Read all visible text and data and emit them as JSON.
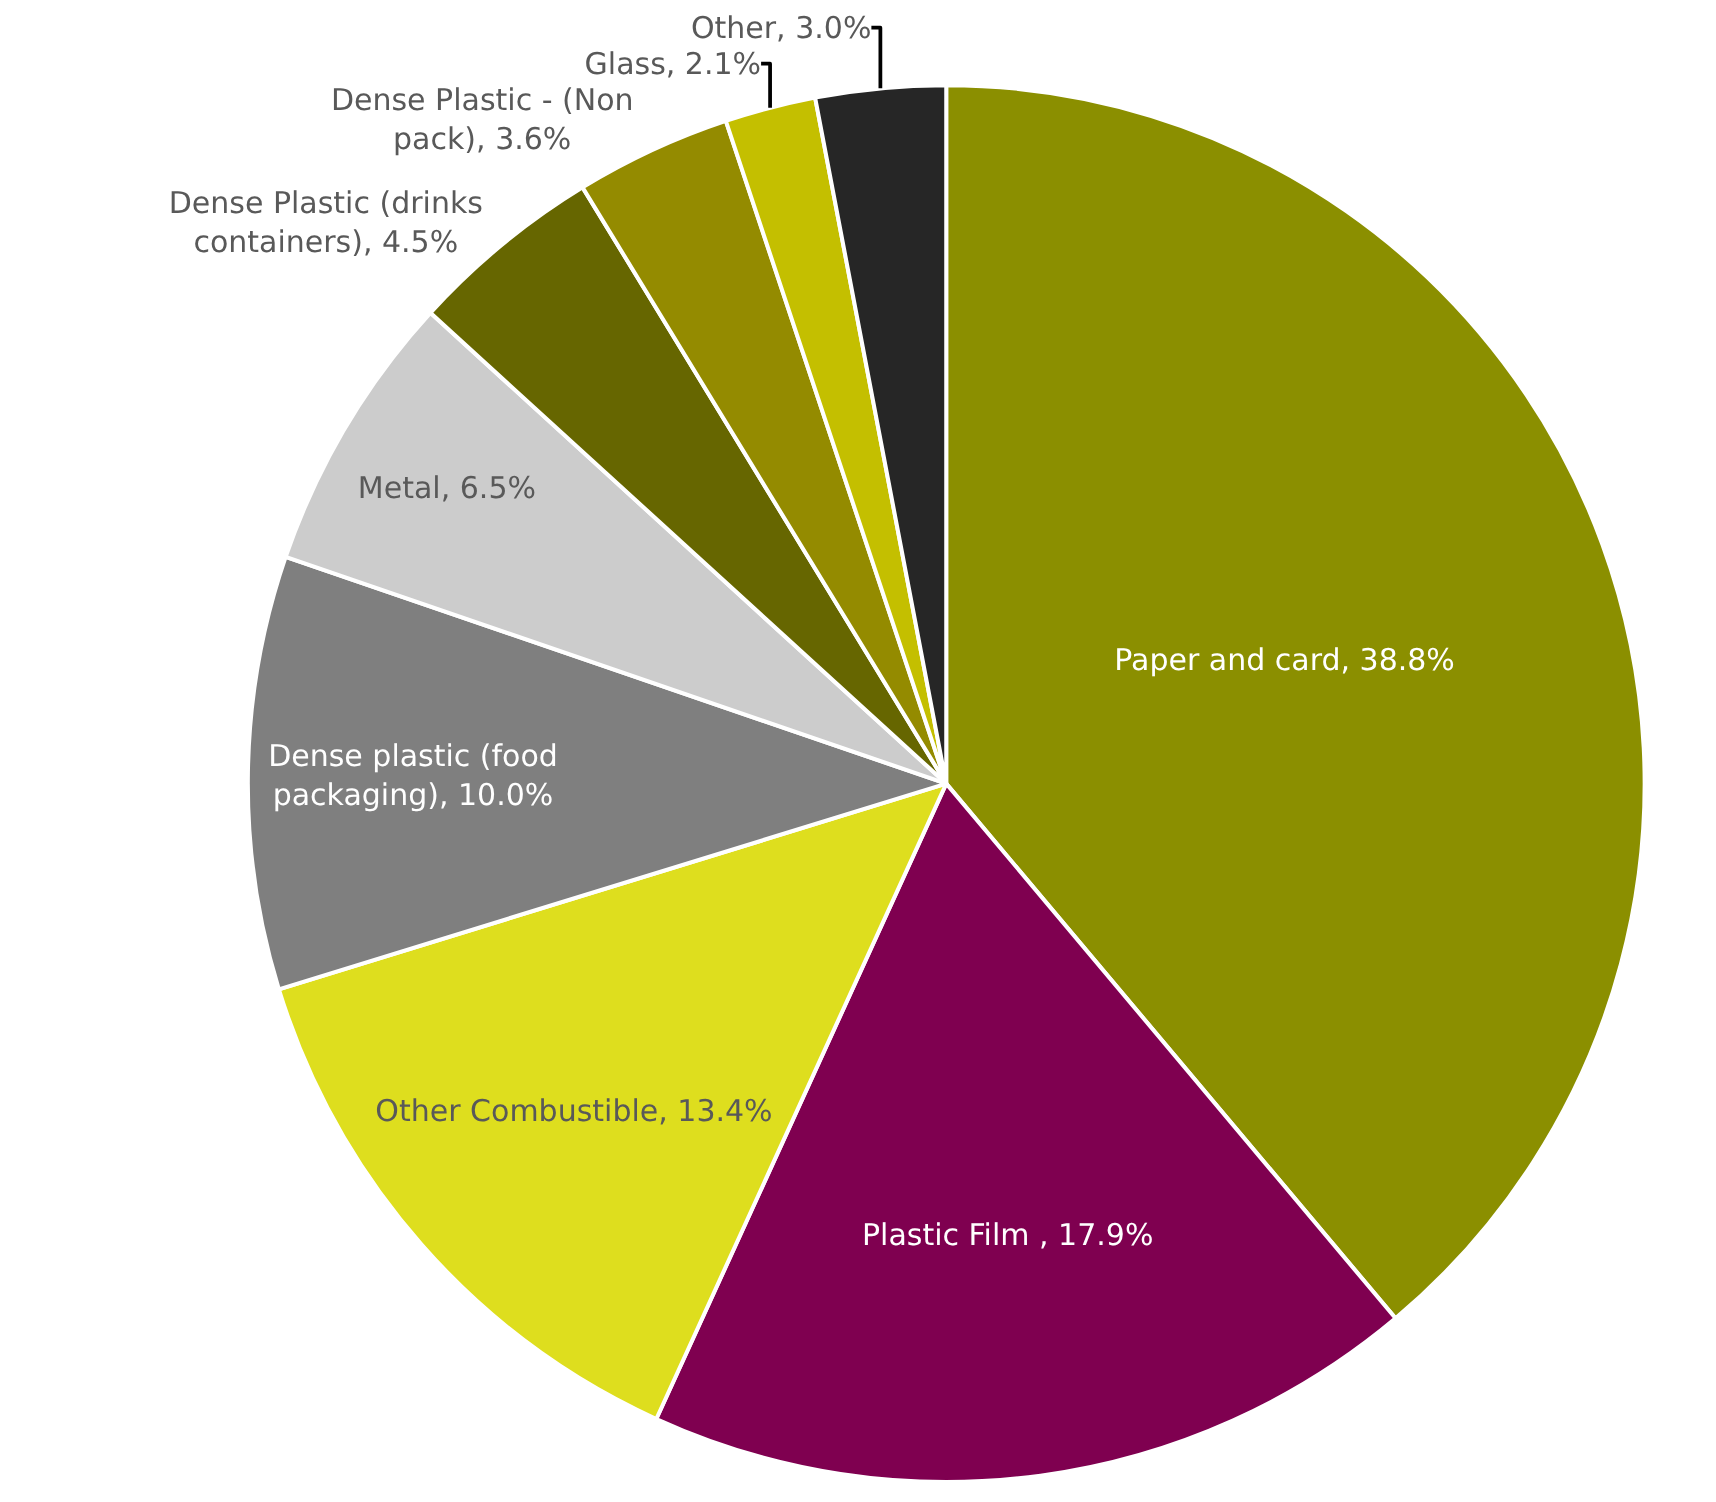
{
  "chart_data": {
    "type": "pie",
    "categories": [
      "Paper and card",
      "Plastic Film ",
      "Other Combustible",
      "Dense plastic (food packaging)",
      "Metal",
      "Dense Plastic (drinks containers)",
      "Dense Plastic - (Non pack)",
      "Glass",
      "Other"
    ],
    "values": [
      38.8,
      17.9,
      13.4,
      10.0,
      6.5,
      4.5,
      3.6,
      2.1,
      3.0
    ],
    "colors": [
      "#8b8f00",
      "#7f0050",
      "#dede1e",
      "#7f7f7f",
      "#cccccc",
      "#666600",
      "#948b00",
      "#c4bf00",
      "#262626"
    ],
    "value_labels": [
      "38.8%",
      "17.9%",
      "13.4%",
      "10.0%",
      "6.5%",
      "4.5%",
      "3.6%",
      "2.1%",
      "3.0%"
    ],
    "legend": false
  }
}
